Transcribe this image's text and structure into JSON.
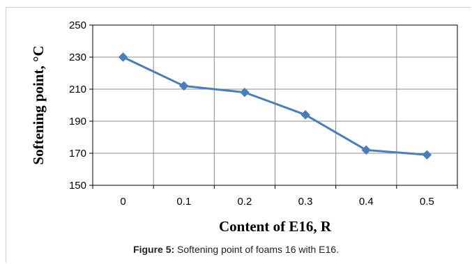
{
  "caption": {
    "label": "Figure 5:",
    "text": " Softening point of foams 16 with E16."
  },
  "chart_data": {
    "type": "line",
    "title": "",
    "xlabel": "Content of E16, R",
    "ylabel": "Softening point, °C",
    "categories": [
      "0",
      "0.1",
      "0.2",
      "0.3",
      "0.4",
      "0.5"
    ],
    "x": [
      0,
      0.1,
      0.2,
      0.3,
      0.4,
      0.5
    ],
    "series": [
      {
        "values": [
          230,
          212,
          208,
          194,
          172,
          169
        ],
        "color": "#4a7ebb",
        "marker": "diamond"
      }
    ],
    "ylim": [
      150,
      250
    ],
    "yticks": [
      150,
      170,
      190,
      210,
      230,
      250
    ],
    "grid": true,
    "legend": "none"
  }
}
